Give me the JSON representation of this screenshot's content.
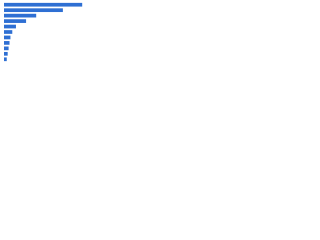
{
  "chart_data": {
    "type": "bar",
    "orientation": "horizontal",
    "categories": [
      null,
      null,
      null,
      null,
      null,
      null,
      null,
      null,
      null,
      null,
      null
    ],
    "values": [
      85,
      64,
      35,
      24,
      13,
      9,
      7,
      6,
      5,
      4,
      3
    ],
    "color": "#2e6fd3",
    "xlim": [
      0,
      100
    ]
  }
}
